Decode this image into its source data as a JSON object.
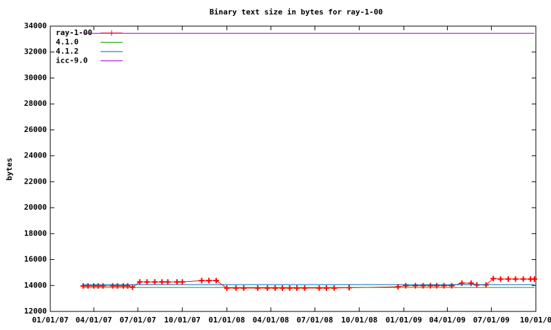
{
  "chart_data": {
    "type": "line",
    "title": "Binary text size in bytes for ray-1-00",
    "ylabel": "bytes",
    "xlim": [
      "2007-01-01",
      "2009-10-01"
    ],
    "xticks": [
      {
        "value": "2007-01-01",
        "label": "01/01/07"
      },
      {
        "value": "2007-04-01",
        "label": "04/01/07"
      },
      {
        "value": "2007-07-01",
        "label": "07/01/07"
      },
      {
        "value": "2007-10-01",
        "label": "10/01/07"
      },
      {
        "value": "2008-01-01",
        "label": "01/01/08"
      },
      {
        "value": "2008-04-01",
        "label": "04/01/08"
      },
      {
        "value": "2008-07-01",
        "label": "07/01/08"
      },
      {
        "value": "2008-10-01",
        "label": "10/01/08"
      },
      {
        "value": "2009-01-01",
        "label": "01/01/09"
      },
      {
        "value": "2009-04-01",
        "label": "04/01/09"
      },
      {
        "value": "2009-07-01",
        "label": "07/01/09"
      },
      {
        "value": "2009-10-01",
        "label": "10/01/0"
      }
    ],
    "ylim": [
      12000,
      34000
    ],
    "yticks": [
      12000,
      14000,
      16000,
      18000,
      20000,
      22000,
      24000,
      26000,
      28000,
      30000,
      32000,
      34000
    ],
    "legend": "top-left",
    "series": [
      {
        "name": "ray-1-00",
        "color": "#ff0000",
        "markers": true,
        "x": [
          "2007-03-10",
          "2007-03-20",
          "2007-04-01",
          "2007-04-10",
          "2007-04-20",
          "2007-05-10",
          "2007-05-20",
          "2007-06-01",
          "2007-06-10",
          "2007-06-20",
          "2007-07-05",
          "2007-07-20",
          "2007-08-05",
          "2007-08-20",
          "2007-09-01",
          "2007-09-20",
          "2007-10-01",
          "2007-11-10",
          "2007-11-25",
          "2007-12-10",
          "2008-01-01",
          "2008-01-20",
          "2008-02-05",
          "2008-03-05",
          "2008-03-25",
          "2008-04-10",
          "2008-04-25",
          "2008-05-10",
          "2008-05-25",
          "2008-06-10",
          "2008-07-10",
          "2008-07-25",
          "2008-08-10",
          "2008-09-10",
          "2008-12-20",
          "2009-01-05",
          "2009-01-25",
          "2009-02-10",
          "2009-02-25",
          "2009-03-10",
          "2009-03-25",
          "2009-04-10",
          "2009-05-01",
          "2009-05-20",
          "2009-06-01",
          "2009-06-20",
          "2009-07-05",
          "2009-07-20",
          "2009-08-05",
          "2009-08-20",
          "2009-09-05",
          "2009-09-20",
          "2009-09-28"
        ],
        "values": [
          13970,
          13970,
          13970,
          13970,
          13970,
          13970,
          13970,
          13970,
          13970,
          13870,
          14270,
          14270,
          14270,
          14270,
          14270,
          14270,
          14270,
          14380,
          14380,
          14380,
          13800,
          13800,
          13800,
          13800,
          13800,
          13800,
          13800,
          13800,
          13800,
          13800,
          13800,
          13800,
          13800,
          13830,
          13900,
          13980,
          13980,
          13980,
          13980,
          13980,
          13980,
          13980,
          14180,
          14180,
          14050,
          14050,
          14530,
          14500,
          14500,
          14500,
          14500,
          14500,
          14500
        ]
      },
      {
        "name": "4.1.0",
        "color": "#00a000",
        "x": [
          "2007-03-10",
          "2009-09-28"
        ],
        "values": [
          13850,
          13850
        ]
      },
      {
        "name": "4.1.2",
        "color": "#0060ad",
        "x": [
          "2007-03-10",
          "2009-09-28"
        ],
        "values": [
          14070,
          14070
        ]
      },
      {
        "name": "icc-9.0",
        "color": "#a000c0",
        "x": [
          "2007-03-10",
          "2009-09-28"
        ],
        "values": [
          33450,
          33450
        ]
      }
    ]
  }
}
